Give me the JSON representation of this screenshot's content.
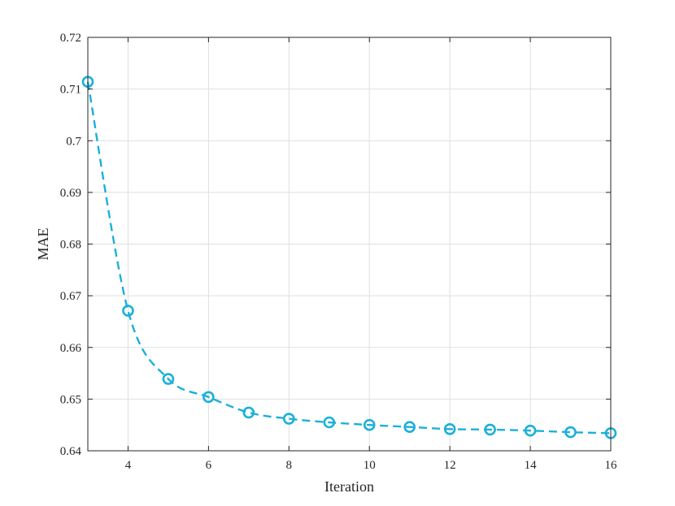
{
  "chart_data": {
    "type": "line",
    "title": "",
    "xlabel": "Iteration",
    "ylabel": "MAE",
    "xlim": [
      3,
      16
    ],
    "ylim": [
      0.64,
      0.72
    ],
    "xticks": [
      4,
      6,
      8,
      10,
      12,
      14,
      16
    ],
    "yticks": [
      0.64,
      0.65,
      0.66,
      0.67,
      0.68,
      0.69,
      0.7,
      0.71,
      0.72
    ],
    "xtick_labels": [
      "4",
      "6",
      "8",
      "10",
      "12",
      "14",
      "16"
    ],
    "ytick_labels": [
      "0.64",
      "0.65",
      "0.66",
      "0.67",
      "0.68",
      "0.69",
      "0.7",
      "0.71",
      "0.72"
    ],
    "grid": true,
    "series": [
      {
        "x": [
          3,
          4,
          5,
          6,
          7,
          8,
          9,
          10,
          11,
          12,
          13,
          14,
          15,
          16
        ],
        "values": [
          0.7114,
          0.6671,
          0.6539,
          0.6504,
          0.6474,
          0.6462,
          0.6455,
          0.645,
          0.6446,
          0.6442,
          0.6441,
          0.6439,
          0.6436,
          0.6434
        ],
        "color": "#1bb0d9",
        "line_style": "dashed",
        "marker": "circle"
      }
    ]
  }
}
